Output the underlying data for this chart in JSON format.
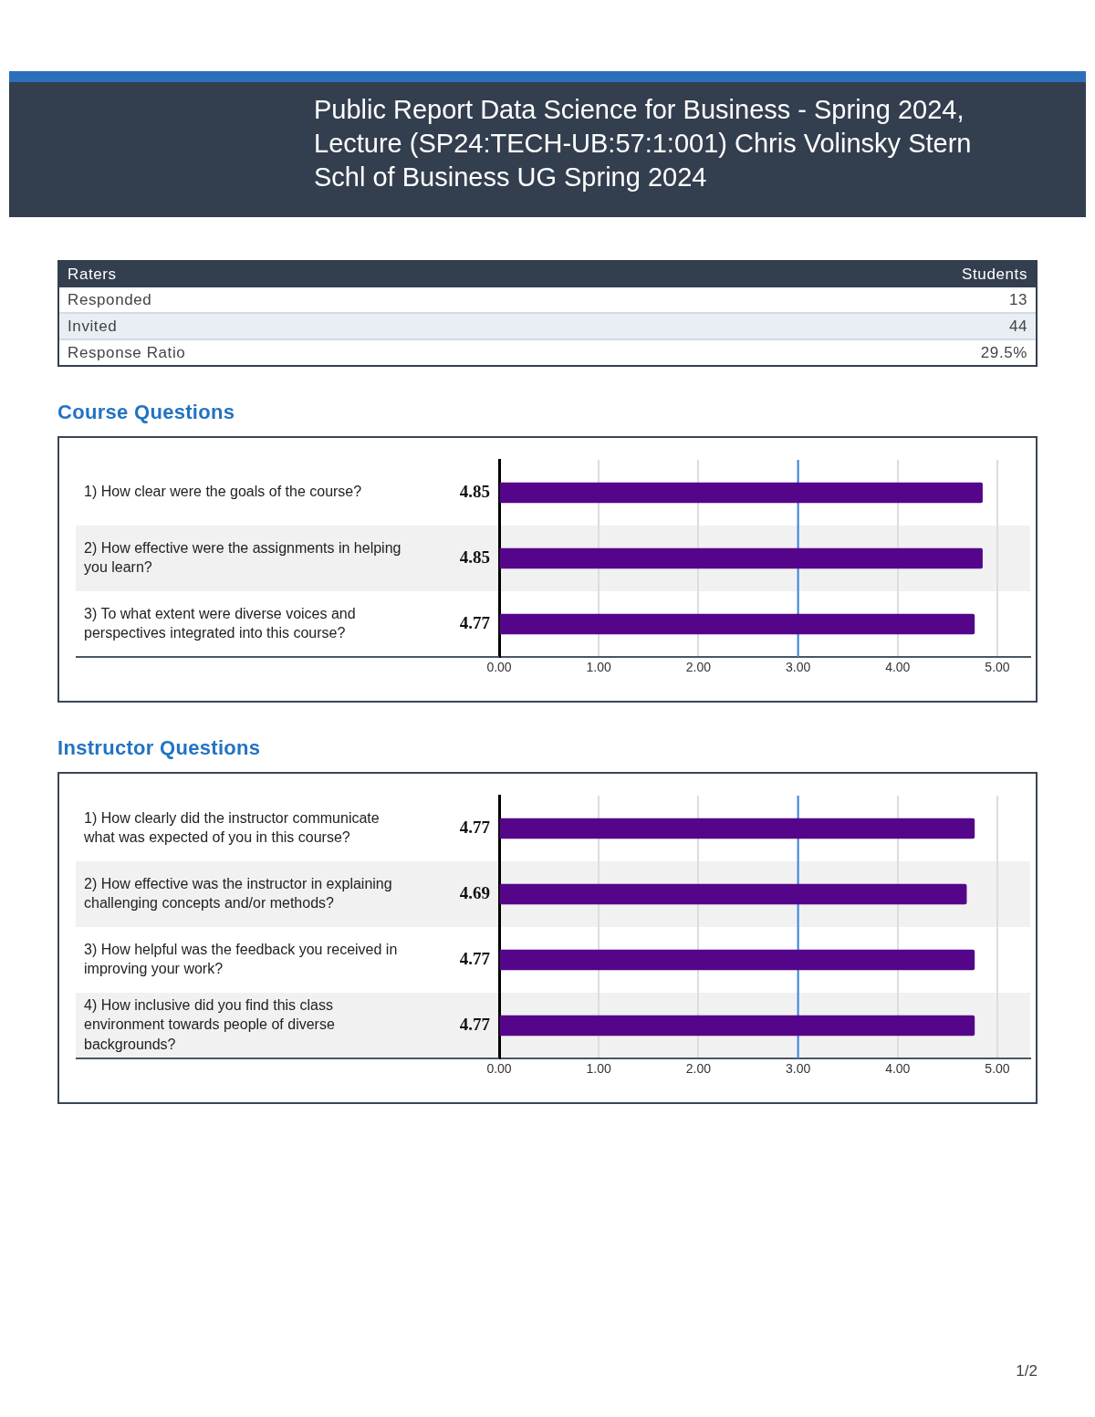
{
  "chart_data": [
    {
      "type": "other",
      "title": "Public Report Data Science for Business - Spring 2024, Lecture (SP24:TECH-UB:57:1:001) Chris Volinsky Stern Schl of Business UG Spring 2024",
      "annotations": [
        "Raters",
        "Students",
        "Responded",
        "13",
        "Invited",
        "44",
        "Response Ratio",
        "29.5%"
      ]
    },
    {
      "type": "bar",
      "orientation": "horizontal",
      "title": "Course Questions",
      "categories": [
        "1) How clear were the goals of the course?",
        "2) How effective were the assignments in helping you learn?",
        "3) To what extent were diverse voices and perspectives integrated into this course?"
      ],
      "values": [
        4.85,
        4.85,
        4.77
      ],
      "color": "#55058a",
      "xlim": [
        0,
        5.33
      ],
      "xticks": [
        {
          "value": 0,
          "label": "0.00"
        },
        {
          "value": 1,
          "label": "1.00"
        },
        {
          "value": 2,
          "label": "2.00"
        },
        {
          "value": 3,
          "label": "3.00"
        },
        {
          "value": 4,
          "label": "4.00"
        },
        {
          "value": 5,
          "label": "5.00"
        }
      ],
      "grid": "x",
      "ref_lines": [
        {
          "axis": "x",
          "value": 3,
          "color": "#3d85e0"
        }
      ],
      "bands": [
        {
          "axis": "y",
          "from": "2) How effective were the assignments in helping you learn?",
          "to": "2) How effective were the assignments in helping you learn?",
          "color": "#f1f1f1"
        }
      ],
      "data_labels": true,
      "legend": false
    },
    {
      "type": "bar",
      "orientation": "horizontal",
      "title": "Instructor Questions",
      "categories": [
        "1) How clearly did the instructor communicate what was expected of you in this course?",
        "2) How effective was the instructor in explaining challenging concepts and/or methods?",
        "3) How helpful was the feedback you received in improving your work?",
        "4) How inclusive did you find this class environment towards people of diverse backgrounds?"
      ],
      "values": [
        4.77,
        4.69,
        4.77,
        4.77
      ],
      "color": "#55058a",
      "xlim": [
        0,
        5.33
      ],
      "xticks": [
        {
          "value": 0,
          "label": "0.00"
        },
        {
          "value": 1,
          "label": "1.00"
        },
        {
          "value": 2,
          "label": "2.00"
        },
        {
          "value": 3,
          "label": "3.00"
        },
        {
          "value": 4,
          "label": "4.00"
        },
        {
          "value": 5,
          "label": "5.00"
        }
      ],
      "grid": "x",
      "ref_lines": [
        {
          "axis": "x",
          "value": 3,
          "color": "#3d85e0"
        }
      ],
      "bands": [
        {
          "axis": "y",
          "from": "2) How effective was the instructor in explaining challenging concepts and/or methods?",
          "to": "2) How effective was the instructor in explaining challenging concepts and/or methods?",
          "color": "#f1f1f1"
        },
        {
          "axis": "y",
          "from": "4) How inclusive did you find this class environment towards people of diverse backgrounds?",
          "to": "4) How inclusive did you find this class environment towards people of diverse backgrounds?",
          "color": "#f1f1f1"
        }
      ],
      "data_labels": true,
      "legend": false
    },
    {
      "type": "other",
      "annotations": [
        "1/2"
      ]
    }
  ]
}
